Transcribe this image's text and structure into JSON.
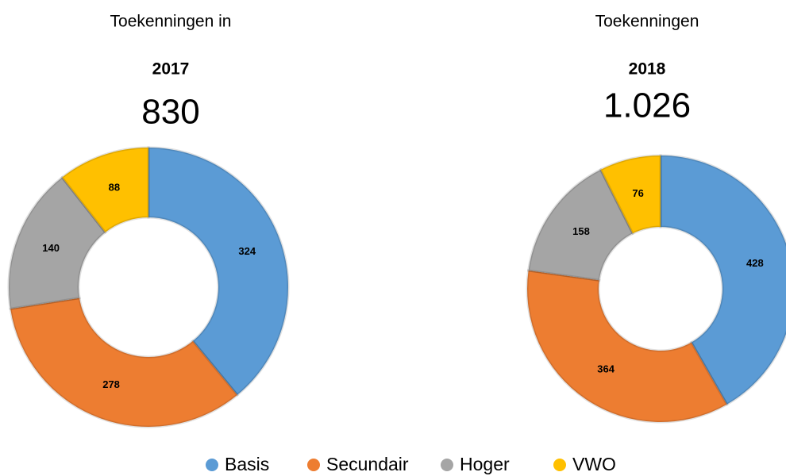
{
  "chart_data": [
    {
      "type": "donut",
      "title": "Toekenningen in",
      "subtitle": "2017",
      "total_label": "830",
      "values": [
        324,
        278,
        140,
        88
      ]
    },
    {
      "type": "donut",
      "title": "Toekenningen",
      "subtitle": "2018",
      "total_label": "1.026",
      "values": [
        428,
        364,
        158,
        76
      ]
    }
  ],
  "legend": {
    "labels": [
      "Basis",
      "Secundair",
      "Hoger",
      "VWO"
    ],
    "colors": [
      "#5b9bd5",
      "#ed7d31",
      "#a5a5a5",
      "#ffc000"
    ]
  }
}
